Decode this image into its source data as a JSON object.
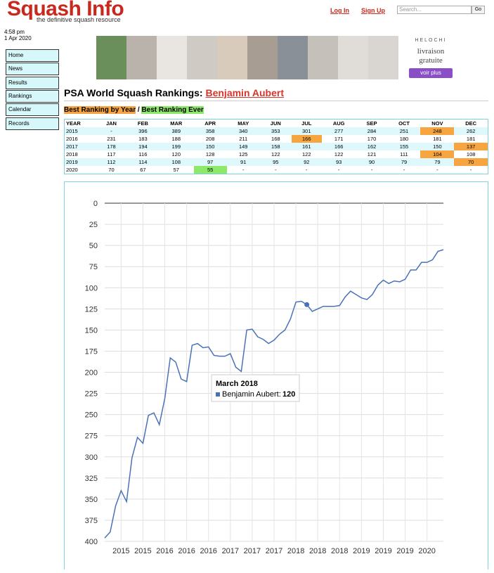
{
  "header": {
    "logo": "Squash Info",
    "tagline": "the definitive squash resource",
    "login": "Log In",
    "signup": "Sign Up",
    "search_placeholder": "Search...",
    "go": "Go",
    "time": "4:58 pm",
    "date": "1 Apr 2020"
  },
  "nav": [
    "Home",
    "News",
    "Results",
    "Rankings",
    "Calendar",
    "Records"
  ],
  "ad": {
    "brand": "HELOCHI",
    "line1": "livraison",
    "line2": "gratuite",
    "button": "voir plus"
  },
  "page": {
    "title": "PSA World Squash Rankings:",
    "player": "Benjamin Aubert",
    "legend_year": "Best Ranking by Year",
    "separator": "/",
    "legend_ever": "Best Ranking Ever",
    "color_year": "#f7a540",
    "color_ever": "#8ee86a"
  },
  "table": {
    "header": [
      "YEAR",
      "JAN",
      "FEB",
      "MAR",
      "APR",
      "MAY",
      "JUN",
      "JUL",
      "AUG",
      "SEP",
      "OCT",
      "NOV",
      "DEC"
    ],
    "rows": [
      [
        "2015",
        "-",
        396,
        389,
        358,
        340,
        353,
        301,
        277,
        284,
        251,
        248,
        262
      ],
      [
        "2016",
        231,
        183,
        188,
        208,
        211,
        168,
        166,
        171,
        170,
        180,
        181,
        181
      ],
      [
        "2017",
        178,
        194,
        199,
        150,
        149,
        158,
        161,
        166,
        162,
        155,
        150,
        137
      ],
      [
        "2018",
        117,
        116,
        120,
        128,
        125,
        122,
        122,
        122,
        121,
        111,
        104,
        108
      ],
      [
        "2019",
        112,
        114,
        108,
        97,
        91,
        95,
        92,
        93,
        90,
        79,
        79,
        70
      ],
      [
        "2020",
        70,
        67,
        57,
        55,
        "-",
        "-",
        "-",
        "-",
        "-",
        "-",
        "-",
        "-"
      ]
    ],
    "best_by_year": [
      [
        0,
        11
      ],
      [
        1,
        7
      ],
      [
        2,
        12
      ],
      [
        3,
        11
      ],
      [
        4,
        12
      ]
    ],
    "best_ever": [
      [
        5,
        4
      ]
    ]
  },
  "chart_data": {
    "type": "line",
    "categories": [
      null,
      null,
      null,
      "2015",
      null,
      null,
      null,
      "2015",
      null,
      null,
      null,
      "2016",
      null,
      null,
      null,
      "2016",
      null,
      null,
      null,
      "2016",
      null,
      null,
      null,
      "2017",
      null,
      null,
      null,
      "2017",
      null,
      null,
      null,
      "2017",
      null,
      null,
      null,
      "2018",
      null,
      null,
      null,
      "2018",
      null,
      null,
      null,
      "2018",
      null,
      null,
      null,
      "2019",
      null,
      null,
      null,
      "2019",
      null,
      null,
      null,
      "2019",
      null,
      null,
      null,
      "2020",
      null,
      null,
      null
    ],
    "series": [
      {
        "name": "Benjamin Aubert",
        "color": "#4a72b8",
        "values": [
          396,
          389,
          358,
          340,
          353,
          301,
          277,
          284,
          251,
          248,
          262,
          231,
          183,
          188,
          208,
          211,
          168,
          166,
          171,
          170,
          180,
          181,
          181,
          178,
          194,
          199,
          150,
          149,
          158,
          161,
          166,
          162,
          155,
          150,
          137,
          117,
          116,
          120,
          128,
          125,
          122,
          122,
          122,
          121,
          111,
          104,
          108,
          112,
          114,
          108,
          97,
          91,
          95,
          92,
          93,
          90,
          79,
          79,
          70,
          70,
          67,
          57,
          55
        ]
      }
    ],
    "ylim": [
      400,
      0
    ],
    "yticks": [
      0,
      25,
      50,
      75,
      100,
      125,
      150,
      175,
      200,
      225,
      250,
      275,
      300,
      325,
      350,
      375,
      400
    ],
    "grid": true,
    "tooltip": {
      "title": "March 2018",
      "label": "Benjamin Aubert:",
      "index": 37
    }
  }
}
